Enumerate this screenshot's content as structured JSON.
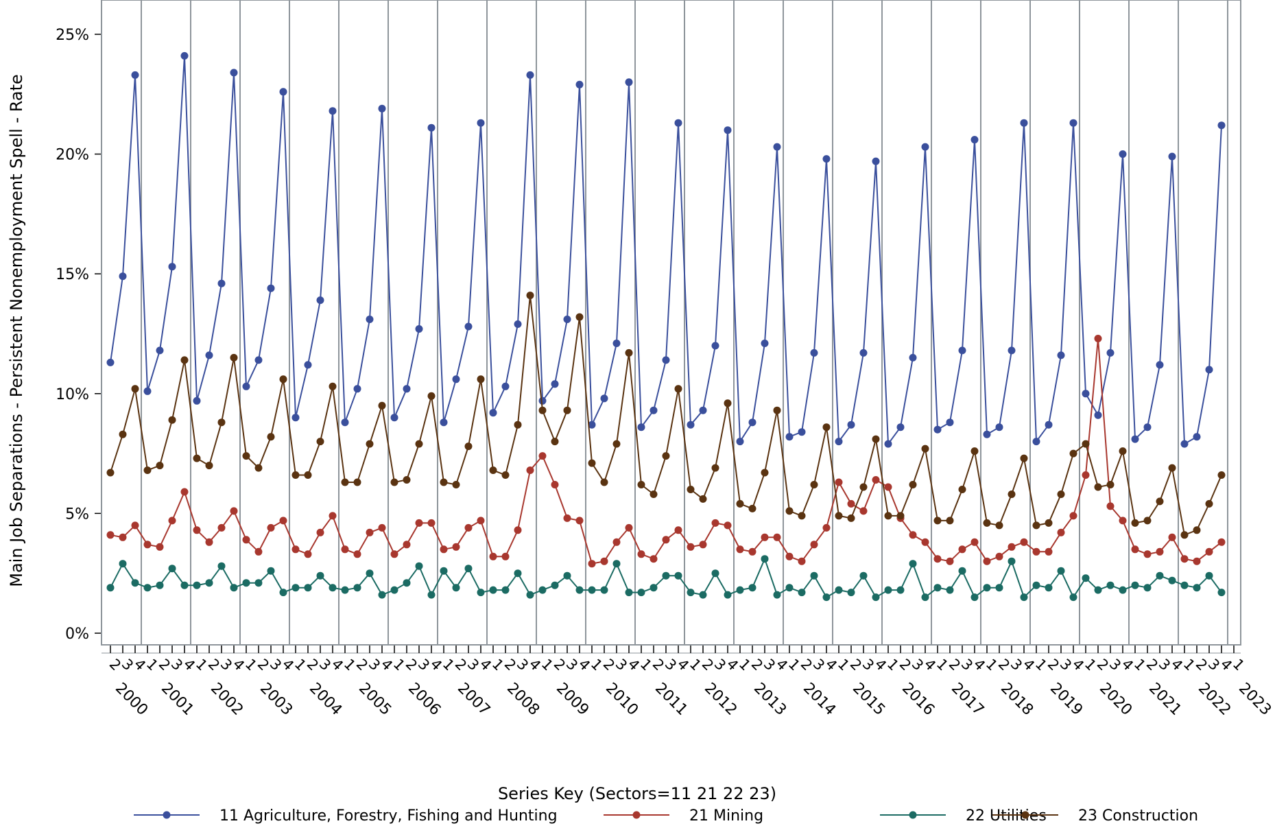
{
  "chart_data": {
    "type": "line",
    "title": "",
    "ylabel": "Main Job Separations - Persistent Nonemployment Spell - Rate",
    "xlabel": "",
    "y_ticks": [
      "0%",
      "5%",
      "10%",
      "15%",
      "20%",
      "25%"
    ],
    "y_tick_values": [
      0,
      5,
      10,
      15,
      20,
      25
    ],
    "ylim": [
      0,
      26.2
    ],
    "x_start": {
      "year": 2000,
      "quarter": 2
    },
    "x_end": {
      "year": 2023,
      "quarter": 1
    },
    "x_label_quarters": [
      "2",
      "3",
      "4",
      "1"
    ],
    "years": [
      "2000",
      "2001",
      "2002",
      "2003",
      "2004",
      "2005",
      "2006",
      "2007",
      "2008",
      "2009",
      "2010",
      "2011",
      "2012",
      "2013",
      "2014",
      "2015",
      "2016",
      "2017",
      "2018",
      "2019",
      "2020",
      "2021",
      "2022",
      "2023"
    ],
    "grid": "vertical at year boundaries",
    "legend": {
      "title": "Series Key (Sectors=11   21   22   23)",
      "placement": "bottom"
    },
    "series": [
      {
        "name": "11 Agriculture, Forestry, Fishing and Hunting",
        "color": "#3a4f9c",
        "values": [
          11.3,
          14.9,
          23.3,
          10.1,
          11.8,
          15.3,
          24.1,
          9.7,
          11.6,
          14.6,
          23.4,
          10.3,
          11.4,
          14.4,
          22.6,
          9.0,
          11.2,
          13.9,
          21.8,
          8.8,
          10.2,
          13.1,
          21.9,
          9.0,
          10.2,
          12.7,
          21.1,
          8.8,
          10.6,
          12.8,
          21.3,
          9.2,
          10.3,
          12.9,
          23.3,
          9.7,
          10.4,
          13.1,
          22.9,
          8.7,
          9.8,
          12.1,
          23.0,
          8.6,
          9.3,
          11.4,
          21.3,
          8.7,
          9.3,
          12.0,
          21.0,
          8.0,
          8.8,
          12.1,
          20.3,
          8.2,
          8.4,
          11.7,
          19.8,
          8.0,
          8.7,
          11.7,
          19.7,
          7.9,
          8.6,
          11.5,
          20.3,
          8.5,
          8.8,
          11.8,
          20.6,
          8.3,
          8.6,
          11.8,
          21.3,
          8.0,
          8.7,
          11.6,
          21.3,
          10.0,
          9.1,
          11.7,
          20.0,
          8.1,
          8.6,
          11.2,
          19.9,
          7.9,
          8.2,
          11.0,
          21.2
        ]
      },
      {
        "name": "21 Mining",
        "color": "#a8372e",
        "values": [
          4.1,
          4.0,
          4.5,
          3.7,
          3.6,
          4.7,
          5.9,
          4.3,
          3.8,
          4.4,
          5.1,
          3.9,
          3.4,
          4.4,
          4.7,
          3.5,
          3.3,
          4.2,
          4.9,
          3.5,
          3.3,
          4.2,
          4.4,
          3.3,
          3.7,
          4.6,
          4.6,
          3.5,
          3.6,
          4.4,
          4.7,
          3.2,
          3.2,
          4.3,
          6.8,
          7.4,
          6.2,
          4.8,
          4.7,
          2.9,
          3.0,
          3.8,
          4.4,
          3.3,
          3.1,
          3.9,
          4.3,
          3.6,
          3.7,
          4.6,
          4.5,
          3.5,
          3.4,
          4.0,
          4.0,
          3.2,
          3.0,
          3.7,
          4.4,
          6.3,
          5.4,
          5.1,
          6.4,
          6.1,
          4.8,
          4.1,
          3.8,
          3.1,
          3.0,
          3.5,
          3.8,
          3.0,
          3.2,
          3.6,
          3.8,
          3.4,
          3.4,
          4.2,
          4.9,
          6.6,
          12.3,
          5.3,
          4.7,
          3.5,
          3.3,
          3.4,
          4.0,
          3.1,
          3.0,
          3.4,
          3.8
        ]
      },
      {
        "name": "22 Utilities",
        "color": "#1b6b63",
        "values": [
          1.9,
          2.9,
          2.1,
          1.9,
          2.0,
          2.7,
          2.0,
          2.0,
          2.1,
          2.8,
          1.9,
          2.1,
          2.1,
          2.6,
          1.7,
          1.9,
          1.9,
          2.4,
          1.9,
          1.8,
          1.9,
          2.5,
          1.6,
          1.8,
          2.1,
          2.8,
          1.6,
          2.6,
          1.9,
          2.7,
          1.7,
          1.8,
          1.8,
          2.5,
          1.6,
          1.8,
          2.0,
          2.4,
          1.8,
          1.8,
          1.8,
          2.9,
          1.7,
          1.7,
          1.9,
          2.4,
          2.4,
          1.7,
          1.6,
          2.5,
          1.6,
          1.8,
          1.9,
          3.1,
          1.6,
          1.9,
          1.7,
          2.4,
          1.5,
          1.8,
          1.7,
          2.4,
          1.5,
          1.8,
          1.8,
          2.9,
          1.5,
          1.9,
          1.8,
          2.6,
          1.5,
          1.9,
          1.9,
          3.0,
          1.5,
          2.0,
          1.9,
          2.6,
          1.5,
          2.3,
          1.8,
          2.0,
          1.8,
          2.0,
          1.9,
          2.4,
          2.2,
          2.0,
          1.9,
          2.4,
          1.7
        ]
      },
      {
        "name": "23 Construction",
        "color": "#5a3311",
        "values": [
          6.7,
          8.3,
          10.2,
          6.8,
          7.0,
          8.9,
          11.4,
          7.3,
          7.0,
          8.8,
          11.5,
          7.4,
          6.9,
          8.2,
          10.6,
          6.6,
          6.6,
          8.0,
          10.3,
          6.3,
          6.3,
          7.9,
          9.5,
          6.3,
          6.4,
          7.9,
          9.9,
          6.3,
          6.2,
          7.8,
          10.6,
          6.8,
          6.6,
          8.7,
          14.1,
          9.3,
          8.0,
          9.3,
          13.2,
          7.1,
          6.3,
          7.9,
          11.7,
          6.2,
          5.8,
          7.4,
          10.2,
          6.0,
          5.6,
          6.9,
          9.6,
          5.4,
          5.2,
          6.7,
          9.3,
          5.1,
          4.9,
          6.2,
          8.6,
          4.9,
          4.8,
          6.1,
          8.1,
          4.9,
          4.9,
          6.2,
          7.7,
          4.7,
          4.7,
          6.0,
          7.6,
          4.6,
          4.5,
          5.8,
          7.3,
          4.5,
          4.6,
          5.8,
          7.5,
          7.9,
          6.1,
          6.2,
          7.6,
          4.6,
          4.7,
          5.5,
          6.9,
          4.1,
          4.3,
          5.4,
          6.6
        ]
      }
    ]
  }
}
